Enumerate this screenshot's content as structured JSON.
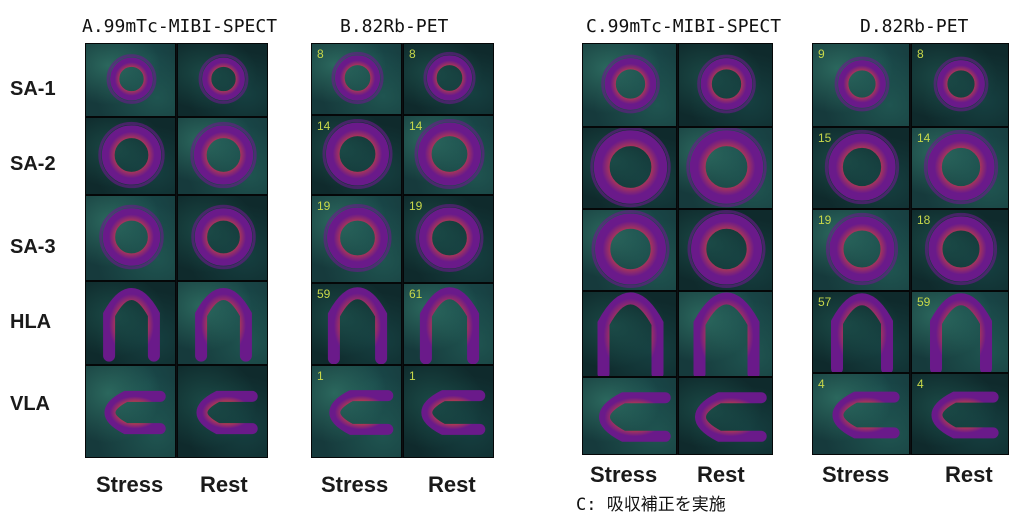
{
  "titles": {
    "a": "A.99mTc-MIBI-SPECT",
    "b": "B.82Rb-PET",
    "c": "C.99mTc-MIBI-SPECT",
    "d": "D.82Rb-PET"
  },
  "rows": [
    "SA-1",
    "SA-2",
    "SA-3",
    "HLA",
    "VLA"
  ],
  "columns": {
    "stress": "Stress",
    "rest": "Rest"
  },
  "note": "C: 吸収補正を実施",
  "frame_numbers": {
    "b": [
      [
        "8",
        "8"
      ],
      [
        "14",
        "14"
      ],
      [
        "19",
        "19"
      ],
      [
        "59",
        "61"
      ],
      [
        "1",
        "1"
      ]
    ],
    "d": [
      [
        "9",
        "8"
      ],
      [
        "15",
        "14"
      ],
      [
        "19",
        "18"
      ],
      [
        "57",
        "59"
      ],
      [
        "4",
        "4"
      ]
    ]
  },
  "colors": {
    "background_tissue": "#163a3c",
    "uptake_low": "#6a1a8a",
    "uptake_mid": "#e0502a",
    "uptake_high": "#ffe27a"
  }
}
